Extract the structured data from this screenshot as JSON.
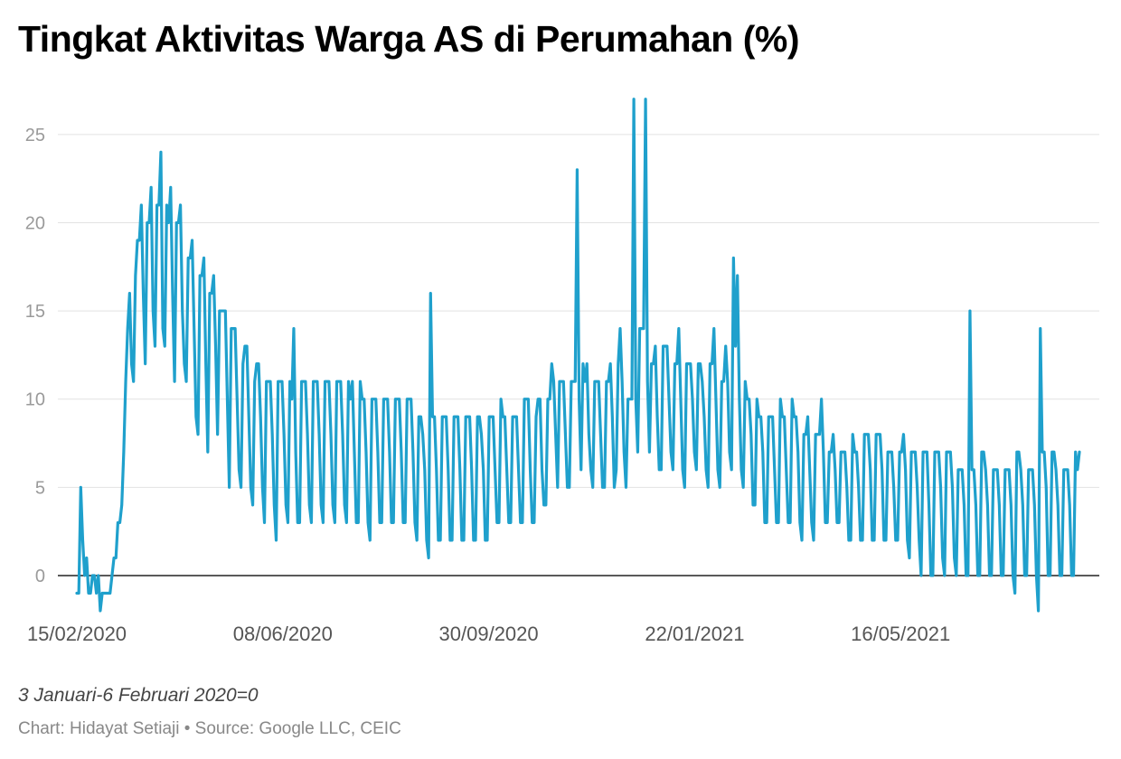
{
  "title": "Tingkat Aktivitas Warga AS di Perumahan (%)",
  "note": "3 Januari-6 Februari 2020=0",
  "credit": "Chart: Hidayat Setiaji • Source: Google LLC, CEIC",
  "colors": {
    "line": "#1fa0cc",
    "grid": "#e2e2e2",
    "zero_line": "#222222"
  },
  "chart_data": {
    "type": "line",
    "title": "Tingkat Aktivitas Warga AS di Perumahan (%)",
    "xlabel": "",
    "ylabel": "",
    "x_start": "2020-02-15",
    "x_end": "2021-08-23",
    "ylim": [
      -2,
      27.5
    ],
    "yticks": [
      0,
      5,
      10,
      15,
      20,
      25
    ],
    "xticks": [
      "15/02/2020",
      "08/06/2020",
      "30/09/2020",
      "22/01/2021",
      "16/05/2021"
    ],
    "grid": true,
    "series": [
      {
        "values": [
          -1,
          -1,
          5,
          2,
          0,
          1,
          -1,
          -1,
          0,
          0,
          -1,
          0,
          -2,
          -1,
          -1,
          -1,
          -1,
          -1,
          0,
          1,
          1,
          3,
          3,
          4,
          7,
          11,
          14,
          16,
          12,
          11,
          17,
          19,
          19,
          21,
          16,
          12,
          20,
          20,
          22,
          15,
          13,
          21,
          21,
          24,
          14,
          13,
          21,
          20,
          22,
          16,
          11,
          20,
          20,
          21,
          15,
          12,
          11,
          18,
          18,
          19,
          14,
          9,
          8,
          17,
          17,
          18,
          12,
          7,
          16,
          16,
          17,
          13,
          8,
          15,
          15,
          15,
          15,
          10,
          5,
          14,
          14,
          14,
          10,
          6,
          5,
          12,
          13,
          13,
          9,
          5,
          4,
          11,
          12,
          12,
          9,
          5,
          3,
          11,
          11,
          11,
          8,
          4,
          2,
          11,
          11,
          11,
          8,
          4,
          3,
          11,
          10,
          14,
          7,
          3,
          3,
          11,
          11,
          11,
          8,
          4,
          3,
          11,
          11,
          11,
          8,
          4,
          3,
          11,
          11,
          11,
          8,
          4,
          3,
          11,
          11,
          11,
          8,
          4,
          3,
          11,
          10,
          11,
          7,
          3,
          3,
          11,
          10,
          10,
          7,
          3,
          2,
          10,
          10,
          10,
          7,
          3,
          3,
          10,
          10,
          10,
          7,
          3,
          3,
          10,
          10,
          10,
          7,
          3,
          3,
          10,
          10,
          10,
          7,
          3,
          2,
          9,
          9,
          8,
          6,
          2,
          1,
          16,
          9,
          9,
          6,
          2,
          2,
          9,
          9,
          9,
          6,
          2,
          2,
          9,
          9,
          9,
          6,
          2,
          2,
          9,
          9,
          9,
          6,
          2,
          2,
          9,
          9,
          8,
          6,
          2,
          2,
          9,
          9,
          9,
          6,
          3,
          3,
          10,
          9,
          9,
          6,
          3,
          3,
          9,
          9,
          9,
          6,
          3,
          3,
          10,
          10,
          10,
          6,
          3,
          3,
          9,
          10,
          10,
          6,
          4,
          4,
          10,
          10,
          12,
          11,
          8,
          5,
          11,
          11,
          11,
          8,
          5,
          5,
          11,
          11,
          11,
          23,
          10,
          6,
          12,
          11,
          12,
          8,
          6,
          5,
          11,
          11,
          11,
          8,
          5,
          5,
          11,
          11,
          12,
          9,
          5,
          6,
          12,
          14,
          11,
          7,
          5,
          10,
          10,
          10,
          27,
          10,
          7,
          14,
          14,
          14,
          27,
          11,
          7,
          12,
          12,
          13,
          9,
          6,
          6,
          13,
          13,
          13,
          10,
          7,
          6,
          12,
          12,
          14,
          10,
          6,
          5,
          12,
          12,
          12,
          10,
          7,
          6,
          12,
          12,
          11,
          9,
          6,
          5,
          12,
          12,
          14,
          10,
          6,
          5,
          11,
          11,
          13,
          11,
          7,
          6,
          18,
          13,
          17,
          10,
          6,
          5,
          11,
          10,
          10,
          8,
          4,
          4,
          10,
          9,
          9,
          7,
          3,
          3,
          9,
          9,
          9,
          6,
          3,
          3,
          10,
          9,
          9,
          6,
          3,
          3,
          10,
          9,
          9,
          7,
          3,
          2,
          8,
          8,
          9,
          6,
          3,
          2,
          8,
          8,
          8,
          10,
          7,
          3,
          3,
          7,
          7,
          8,
          6,
          3,
          3,
          7,
          7,
          7,
          5,
          2,
          2,
          8,
          7,
          7,
          5,
          2,
          2,
          8,
          8,
          8,
          6,
          2,
          2,
          8,
          8,
          8,
          6,
          2,
          2,
          7,
          7,
          7,
          5,
          2,
          2,
          7,
          7,
          8,
          6,
          2,
          1,
          7,
          7,
          7,
          5,
          2,
          0,
          7,
          7,
          7,
          4,
          0,
          0,
          7,
          7,
          7,
          5,
          1,
          0,
          7,
          7,
          7,
          5,
          1,
          0,
          6,
          6,
          6,
          4,
          0,
          0,
          15,
          6,
          6,
          4,
          0,
          0,
          7,
          7,
          6,
          4,
          0,
          0,
          6,
          6,
          6,
          4,
          0,
          0,
          6,
          6,
          6,
          4,
          0,
          -1,
          7,
          7,
          6,
          4,
          0,
          0,
          6,
          6,
          6,
          4,
          0,
          -2,
          14,
          7,
          7,
          5,
          0,
          0,
          7,
          7,
          6,
          4,
          0,
          0,
          6,
          6,
          6,
          4,
          0,
          0,
          7,
          6,
          7
        ]
      }
    ]
  }
}
